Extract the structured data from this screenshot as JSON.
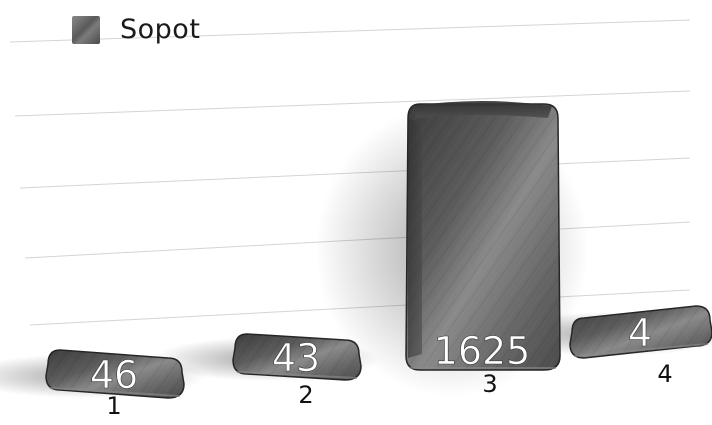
{
  "chart_data": {
    "type": "bar",
    "categories": [
      "1",
      "2",
      "3",
      "4"
    ],
    "series": [
      {
        "name": "Sopot",
        "values": [
          46,
          43,
          1625,
          4
        ]
      }
    ],
    "data_labels": [
      "46",
      "43",
      "1625",
      "4"
    ],
    "legend": {
      "position": "top-left",
      "entries": [
        "Sopot"
      ]
    },
    "grid": true,
    "colors": {
      "bar": "#4a4a4a",
      "bar_light": "#8c8c8c",
      "bar_dark": "#262626",
      "label": "#ffffff",
      "tick": "#111111",
      "grid": "#d4d4d4"
    }
  }
}
